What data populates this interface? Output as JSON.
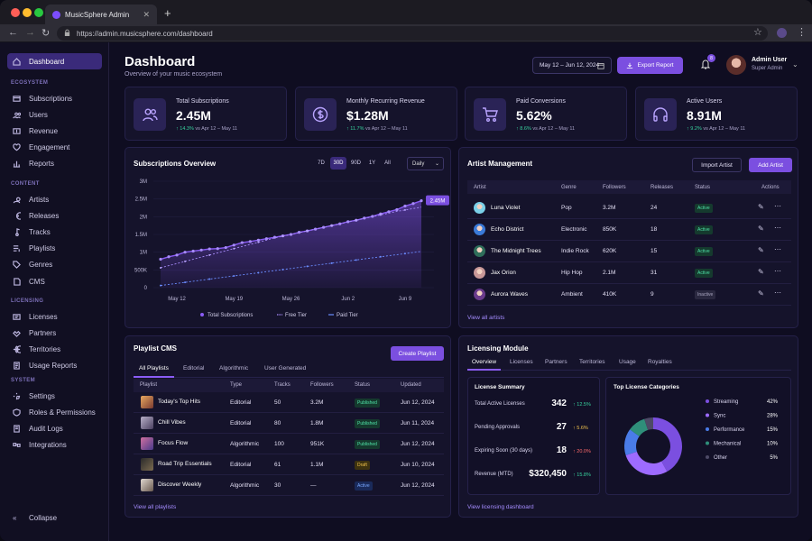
{
  "browser": {
    "tab_title": "MusicSphere Admin",
    "url": "https://admin.musicsphere.com/dashboard"
  },
  "sidebar": {
    "dashboard": "Dashboard",
    "sections": [
      {
        "label": "ECOSYSTEM",
        "items": [
          "Subscriptions",
          "Users",
          "Revenue",
          "Engagement",
          "Reports"
        ]
      },
      {
        "label": "CONTENT",
        "items": [
          "Artists",
          "Releases",
          "Tracks",
          "Playlists",
          "Genres",
          "CMS"
        ]
      },
      {
        "label": "LICENSING",
        "items": [
          "Licenses",
          "Partners",
          "Territories",
          "Usage Reports"
        ]
      },
      {
        "label": "SYSTEM",
        "items": [
          "Settings",
          "Roles & Permissions",
          "Audit Logs",
          "Integrations"
        ]
      }
    ],
    "collapse": "Collapse"
  },
  "header": {
    "title": "Dashboard",
    "subtitle": "Overview of your music ecosystem",
    "date_range": "May 12 – Jun 12, 2024",
    "export": "Export Report",
    "notifications": "8",
    "user_name": "Admin User",
    "user_role": "Super Admin"
  },
  "stats": [
    {
      "label": "Total Subscriptions",
      "value": "2.45M",
      "change": "↑ 14.3%",
      "period": "vs Apr 12 – May 11",
      "icon": "users-icon"
    },
    {
      "label": "Monthly Recurring Revenue",
      "value": "$1.28M",
      "change": "↑ 11.7%",
      "period": "vs Apr 12 – May 11",
      "icon": "dollar-icon"
    },
    {
      "label": "Paid Conversions",
      "value": "5.62%",
      "change": "↑ 8.6%",
      "period": "vs Apr 12 – May 11",
      "icon": "cart-icon"
    },
    {
      "label": "Active Users",
      "value": "8.91M",
      "change": "↑ 9.2%",
      "period": "vs Apr 12 – May 11",
      "icon": "headphones-icon"
    }
  ],
  "subs": {
    "title": "Subscriptions Overview",
    "ranges": [
      "7D",
      "30D",
      "90D",
      "1Y",
      "All"
    ],
    "active_range": "30D",
    "interval": "Daily"
  },
  "chart_data": {
    "type": "line",
    "x_ticks": [
      "May 12",
      "May 19",
      "May 26",
      "Jun 2",
      "Jun 9"
    ],
    "y_ticks": [
      "3M",
      "2.5M",
      "2M",
      "1.5M",
      "1M",
      "500K",
      "0"
    ],
    "ylim": [
      0,
      3000000
    ],
    "end_label": "2.45M",
    "series": [
      {
        "name": "Total Subscriptions",
        "color": "#8b5cf6",
        "values": [
          800000,
          870000,
          920000,
          1000000,
          1030000,
          1060000,
          1090000,
          1100000,
          1130000,
          1200000,
          1270000,
          1300000,
          1340000,
          1380000,
          1420000,
          1460000,
          1500000,
          1560000,
          1600000,
          1650000,
          1700000,
          1750000,
          1800000,
          1860000,
          1900000,
          1960000,
          2010000,
          2080000,
          2140000,
          2200000,
          2300000,
          2370000,
          2450000
        ]
      },
      {
        "name": "Free Tier",
        "color": "#a78bfa",
        "values": [
          560000,
          620000,
          680000,
          740000,
          800000,
          860000,
          920000,
          980000,
          1040000,
          1100000,
          1160000,
          1220000,
          1280000,
          1340000,
          1400000,
          1450000,
          1500000,
          1550000,
          1600000,
          1650000,
          1700000,
          1750000,
          1800000,
          1850000,
          1900000,
          1950000,
          2000000,
          2050000,
          2100000,
          2150000,
          2190000,
          2230000,
          2270000
        ]
      },
      {
        "name": "Paid Tier",
        "color": "#6b8cff",
        "values": [
          60000,
          90000,
          120000,
          150000,
          180000,
          210000,
          240000,
          270000,
          300000,
          330000,
          360000,
          390000,
          420000,
          450000,
          480000,
          510000,
          540000,
          570000,
          600000,
          630000,
          660000,
          690000,
          720000,
          750000,
          780000,
          810000,
          840000,
          870000,
          900000,
          930000,
          960000,
          990000,
          1020000
        ]
      }
    ]
  },
  "artists": {
    "title": "Artist Management",
    "import": "Import Artist",
    "add": "Add Artist",
    "cols": [
      "Artist",
      "Genre",
      "Followers",
      "Releases",
      "Status",
      "Actions"
    ],
    "rows": [
      {
        "name": "Luna Violet",
        "genre": "Pop",
        "followers": "3.2M",
        "releases": "24",
        "status": "Active"
      },
      {
        "name": "Echo District",
        "genre": "Electronic",
        "followers": "850K",
        "releases": "18",
        "status": "Active"
      },
      {
        "name": "The Midnight Trees",
        "genre": "Indie Rock",
        "followers": "620K",
        "releases": "15",
        "status": "Active"
      },
      {
        "name": "Jax Orion",
        "genre": "Hip Hop",
        "followers": "2.1M",
        "releases": "31",
        "status": "Active"
      },
      {
        "name": "Aurora Waves",
        "genre": "Ambient",
        "followers": "410K",
        "releases": "9",
        "status": "Inactive"
      }
    ],
    "link": "View all artists"
  },
  "playlists": {
    "title": "Playlist CMS",
    "create": "Create Playlist",
    "tabs": [
      "All Playlists",
      "Editorial",
      "Algorithmic",
      "User Generated"
    ],
    "cols": [
      "Playlist",
      "Type",
      "Tracks",
      "Followers",
      "Status",
      "Updated"
    ],
    "rows": [
      {
        "name": "Today's Top Hits",
        "type": "Editorial",
        "tracks": "50",
        "followers": "3.2M",
        "status": "Published",
        "updated": "Jun 12, 2024"
      },
      {
        "name": "Chill Vibes",
        "type": "Editorial",
        "tracks": "80",
        "followers": "1.8M",
        "status": "Published",
        "updated": "Jun 11, 2024"
      },
      {
        "name": "Focus Flow",
        "type": "Algorithmic",
        "tracks": "100",
        "followers": "951K",
        "status": "Published",
        "updated": "Jun 12, 2024"
      },
      {
        "name": "Road Trip Essentials",
        "type": "Editorial",
        "tracks": "61",
        "followers": "1.1M",
        "status": "Draft",
        "updated": "Jun 10, 2024"
      },
      {
        "name": "Discover Weekly",
        "type": "Algorithmic",
        "tracks": "30",
        "followers": "—",
        "status": "Active",
        "updated": "Jun 12, 2024"
      }
    ],
    "link": "View all playlists"
  },
  "licensing": {
    "title": "Licensing Module",
    "tabs": [
      "Overview",
      "Licenses",
      "Partners",
      "Territories",
      "Usage",
      "Royalties"
    ],
    "summary_title": "License Summary",
    "summary": [
      {
        "label": "Total Active Licenses",
        "value": "342",
        "change": "↑ 12.5%",
        "dir": "up"
      },
      {
        "label": "Pending Approvals",
        "value": "27",
        "change": "↑ 5.6%",
        "dir": "warn"
      },
      {
        "label": "Expiring Soon (30 days)",
        "value": "18",
        "change": "↑ 20.0%",
        "dir": "down"
      },
      {
        "label": "Revenue (MTD)",
        "value": "$320,450",
        "change": "↑ 15.8%",
        "dir": "up"
      }
    ],
    "categories_title": "Top License Categories",
    "link": "View licensing dashboard"
  },
  "donut": {
    "items": [
      {
        "label": "Streaming",
        "pct": "42%",
        "value": 42,
        "color": "#7b4fe0"
      },
      {
        "label": "Sync",
        "pct": "28%",
        "value": 28,
        "color": "#9d6bff"
      },
      {
        "label": "Performance",
        "pct": "15%",
        "value": 15,
        "color": "#4a7ce8"
      },
      {
        "label": "Mechanical",
        "pct": "10%",
        "value": 10,
        "color": "#2f8f7a"
      },
      {
        "label": "Other",
        "pct": "5%",
        "value": 5,
        "color": "#4d4a66"
      }
    ]
  }
}
